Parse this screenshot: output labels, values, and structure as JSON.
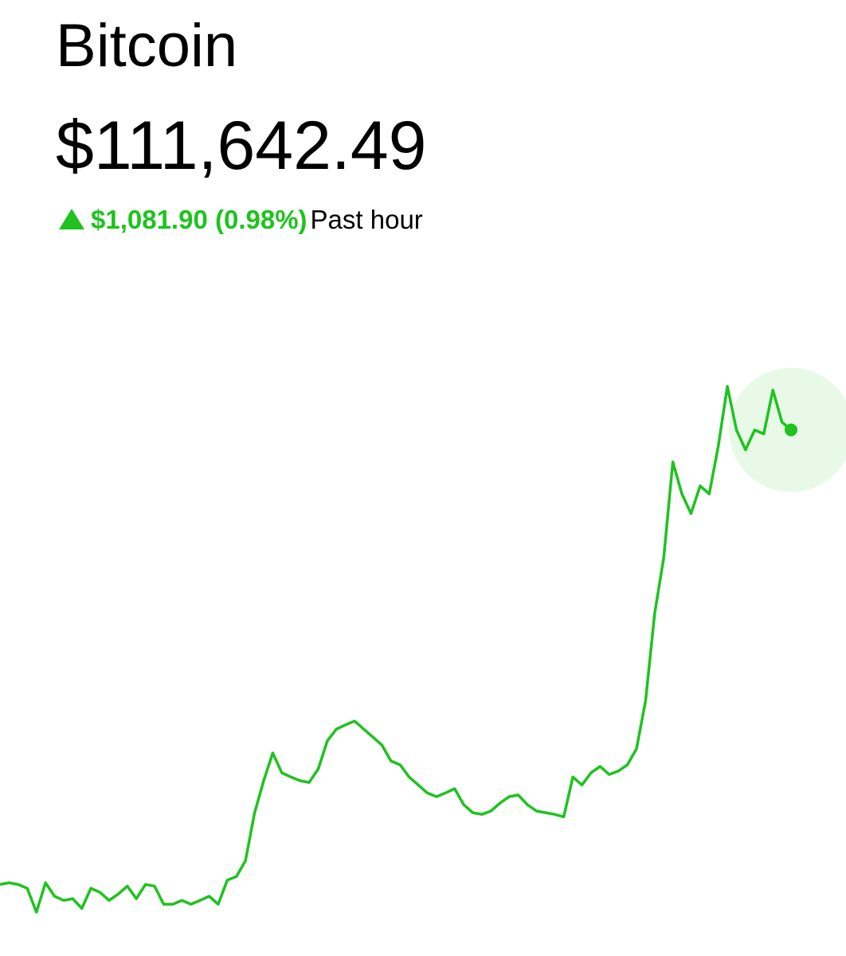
{
  "header": {
    "title": "Bitcoin",
    "price": "$111,642.49",
    "change": "$1,081.90 (0.98%)",
    "period": "Past hour"
  },
  "chart_data": {
    "type": "line",
    "color": "#1ec31e",
    "values": [
      110560,
      110564,
      110560,
      110551,
      110494,
      110564,
      110532,
      110522,
      110526,
      110503,
      110551,
      110541,
      110522,
      110537,
      110556,
      110526,
      110560,
      110556,
      110513,
      110513,
      110522,
      110513,
      110522,
      110532,
      110513,
      110570,
      110579,
      110617,
      110731,
      110807,
      110873,
      110826,
      110816,
      110807,
      110803,
      110835,
      110902,
      110930,
      110940,
      110949,
      110930,
      110911,
      110892,
      110854,
      110845,
      110816,
      110797,
      110778,
      110769,
      110778,
      110788,
      110750,
      110731,
      110727,
      110735,
      110754,
      110769,
      110773,
      110750,
      110735,
      110731,
      110727,
      110721,
      110816,
      110797,
      110826,
      110841,
      110822,
      110830,
      110845,
      110883,
      110997,
      111205,
      111338,
      111566,
      111490,
      111443,
      111509,
      111490,
      111604,
      111746,
      111642,
      111595,
      111642,
      111633,
      111737,
      111661,
      111642.49
    ]
  }
}
